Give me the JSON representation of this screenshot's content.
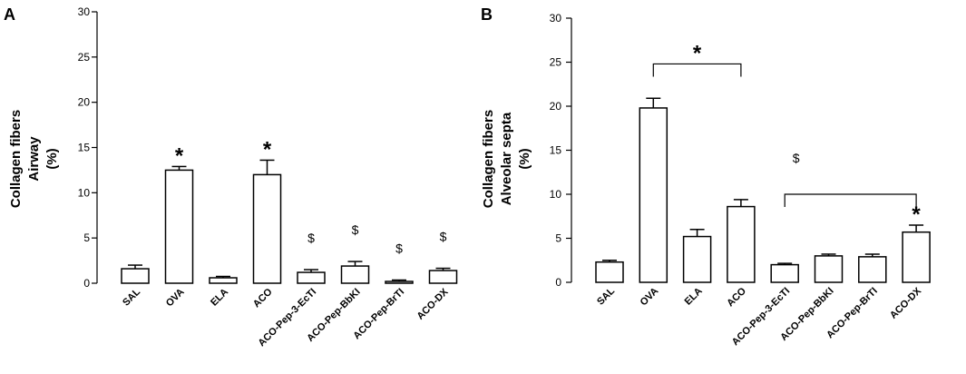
{
  "chart_data": [
    {
      "type": "bar",
      "panel": "A",
      "ylabel_lines": [
        "Collagen fibers",
        "Airway",
        "(%)"
      ],
      "ylim": [
        0,
        30
      ],
      "yticks": [
        0,
        5,
        10,
        15,
        20,
        25,
        30
      ],
      "categories": [
        "SAL",
        "OVA",
        "ELA",
        "ACO",
        "ACO-Pep-3-EcTI",
        "ACO-Pep-BbKI",
        "ACO-Pep-BrTI",
        "ACO-DX"
      ],
      "values": [
        1.6,
        12.5,
        0.6,
        12.0,
        1.2,
        1.9,
        0.2,
        1.4
      ],
      "errors": [
        0.4,
        0.4,
        0.15,
        1.6,
        0.3,
        0.5,
        0.15,
        0.25
      ],
      "annotations": [
        "",
        "*",
        "",
        "*",
        "$",
        "$",
        "$",
        "$"
      ],
      "brackets": []
    },
    {
      "type": "bar",
      "panel": "B",
      "ylabel_lines": [
        "Collagen fibers",
        "Alveolar septa",
        "(%)"
      ],
      "ylim": [
        0,
        30
      ],
      "yticks": [
        0,
        5,
        10,
        15,
        20,
        25,
        30
      ],
      "categories": [
        "SAL",
        "OVA",
        "ELA",
        "ACO",
        "ACO-Pep-3-EcTI",
        "ACO-Pep-BbKI",
        "ACO-Pep-BrTI",
        "ACO-DX"
      ],
      "values": [
        2.3,
        19.8,
        5.2,
        8.6,
        2.0,
        3.0,
        2.9,
        5.7
      ],
      "errors": [
        0.2,
        1.1,
        0.8,
        0.8,
        0.15,
        0.2,
        0.3,
        0.8
      ],
      "annotations": [
        "",
        "",
        "",
        "",
        "",
        "",
        "",
        "*"
      ],
      "brackets": [
        {
          "from": 1,
          "to": 3,
          "level": 24.8,
          "label": "*"
        },
        {
          "from": 4,
          "to": 7,
          "level": 10,
          "label": "$",
          "label_level": 14
        }
      ]
    }
  ]
}
